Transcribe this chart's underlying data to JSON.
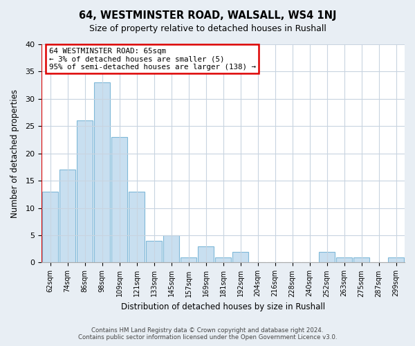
{
  "title": "64, WESTMINSTER ROAD, WALSALL, WS4 1NJ",
  "subtitle": "Size of property relative to detached houses in Rushall",
  "xlabel": "Distribution of detached houses by size in Rushall",
  "ylabel": "Number of detached properties",
  "bar_labels": [
    "62sqm",
    "74sqm",
    "86sqm",
    "98sqm",
    "109sqm",
    "121sqm",
    "133sqm",
    "145sqm",
    "157sqm",
    "169sqm",
    "181sqm",
    "192sqm",
    "204sqm",
    "216sqm",
    "228sqm",
    "240sqm",
    "252sqm",
    "263sqm",
    "275sqm",
    "287sqm",
    "299sqm"
  ],
  "bar_values": [
    13,
    17,
    26,
    33,
    23,
    13,
    4,
    5,
    1,
    3,
    1,
    2,
    0,
    0,
    0,
    0,
    2,
    1,
    1,
    0,
    1
  ],
  "bar_color": "#c8dff0",
  "bar_edge_color": "#7fb8d8",
  "highlight_color": "#dd0000",
  "ylim": [
    0,
    40
  ],
  "yticks": [
    0,
    5,
    10,
    15,
    20,
    25,
    30,
    35,
    40
  ],
  "annotation_line1": "64 WESTMINSTER ROAD: 65sqm",
  "annotation_line2": "← 3% of detached houses are smaller (5)",
  "annotation_line3": "95% of semi-detached houses are larger (138) →",
  "footer_line1": "Contains HM Land Registry data © Crown copyright and database right 2024.",
  "footer_line2": "Contains public sector information licensed under the Open Government Licence v3.0.",
  "bg_color": "#e8eef4",
  "plot_bg_color": "#ffffff",
  "grid_color": "#c8d4e0"
}
